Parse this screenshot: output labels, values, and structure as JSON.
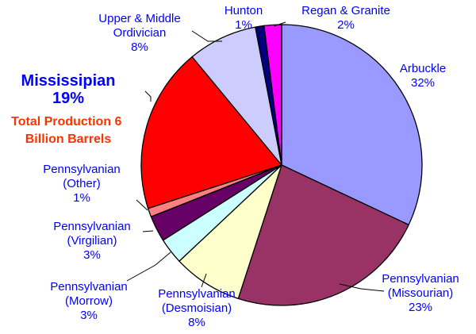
{
  "chart_data": {
    "type": "pie",
    "annotation": [
      "Total Production 6",
      "Billion Barrels"
    ],
    "slices": [
      {
        "name": "Arbuckle",
        "label": [
          "Arbuckle",
          "32%"
        ],
        "value": 32,
        "color": "#9999ff"
      },
      {
        "name": "Pennsylvanian (Missourian)",
        "label": [
          "Pennsylvanian",
          "(Missourian)",
          "23%"
        ],
        "value": 23,
        "color": "#993366"
      },
      {
        "name": "Pennsylvanian (Desmoisian)",
        "label": [
          "Pennsylvanian",
          "(Desmoisian)",
          "8%"
        ],
        "value": 8,
        "color": "#ffffcc"
      },
      {
        "name": "Pennsylvanian (Morrow)",
        "label": [
          "Pennsylvanian",
          "(Morrow)",
          "3%"
        ],
        "value": 3,
        "color": "#ccffff"
      },
      {
        "name": "Pennsylvanian (Virgilian)",
        "label": [
          "Pennsylvanian",
          "(Virgilian)",
          "3%"
        ],
        "value": 3,
        "color": "#660066"
      },
      {
        "name": "Pennsylvanian (Other)",
        "label": [
          "Pennsylvanian",
          "(Other)",
          "1%"
        ],
        "value": 1,
        "color": "#ff8080"
      },
      {
        "name": "Mississipian",
        "label": [
          "Mississipian",
          "19%"
        ],
        "value": 19,
        "color": "#ff0000"
      },
      {
        "name": "Upper & Middle Ordivician",
        "label": [
          "Upper & Middle",
          "Ordivician",
          "8%"
        ],
        "value": 8,
        "color": "#ccccff"
      },
      {
        "name": "Hunton",
        "label": [
          "Hunton",
          "1%"
        ],
        "value": 1,
        "color": "#000080"
      },
      {
        "name": "Regan & Granite",
        "label": [
          "Regan & Granite",
          "2%"
        ],
        "value": 2,
        "color": "#ff00ff"
      }
    ]
  }
}
